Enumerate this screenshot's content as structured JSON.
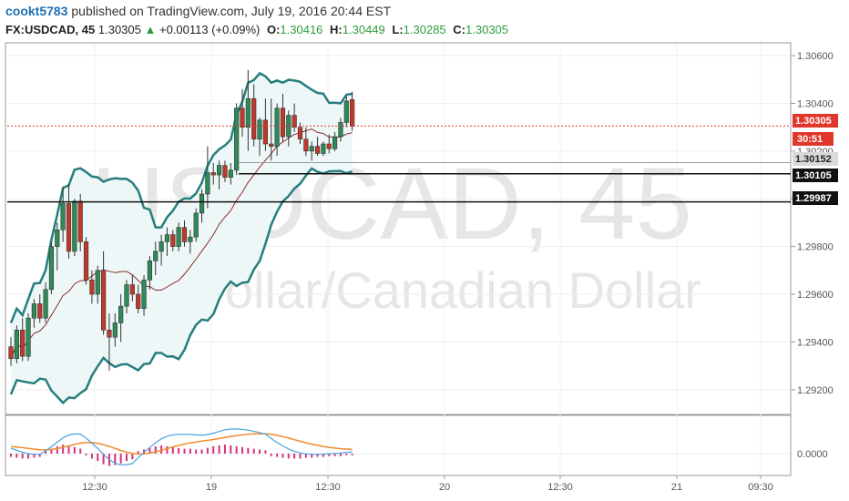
{
  "header": {
    "author": "cookt5783",
    "published_text": "published on TradingView.com, July 19, 2016 20:44 EST",
    "symbol": "FX:USDCAD, 45",
    "last": "1.30305",
    "arrow": "▲",
    "change": "+0.00113 (+0.09%)",
    "o_label": "O:",
    "o_value": "1.30416",
    "h_label": "H:",
    "h_value": "1.30449",
    "l_label": "L:",
    "l_value": "1.30285",
    "c_label": "C:",
    "c_value": "1.30305"
  },
  "watermark": {
    "symbol": "USDCAD, 45",
    "name": "U.S. Dollar/Canadian Dollar"
  },
  "price_tags": {
    "last": "1.30305",
    "countdown": "30:51",
    "level1": "1.30152",
    "level2": "1.30105",
    "level3": "1.29987"
  },
  "colors": {
    "up": "#2e8b57",
    "down": "#c0392b",
    "band": "#267e7e",
    "band_fill": "#eef7f7",
    "basis": "#8b2a2a",
    "macd": "#4aa3df",
    "signal": "#f08c2c",
    "hist_pos": "#d6307a",
    "hist_neg": "#d6307a",
    "last_line": "#e0362b"
  },
  "chart_data": {
    "type": "candlestick",
    "y_ticks": [
      "1.30600",
      "1.30400",
      "1.30200",
      "1.30000",
      "1.29800",
      "1.29600",
      "1.29400",
      "1.29200"
    ],
    "ylim": [
      1.291,
      1.3065
    ],
    "x_ticks": [
      "12:30",
      "19",
      "12:30",
      "20",
      "12:30",
      "21",
      "09:30"
    ],
    "horizontal_levels": [
      1.30105,
      1.29987
    ],
    "last_price": 1.30305,
    "candles": [
      [
        1.2938,
        1.2942,
        1.293,
        1.2933
      ],
      [
        1.2933,
        1.2947,
        1.2931,
        1.2945
      ],
      [
        1.2945,
        1.295,
        1.2932,
        1.2934
      ],
      [
        1.2934,
        1.2952,
        1.2932,
        1.295
      ],
      [
        1.295,
        1.2958,
        1.2946,
        1.2956
      ],
      [
        1.2956,
        1.296,
        1.2948,
        1.295
      ],
      [
        1.295,
        1.2965,
        1.2948,
        1.2962
      ],
      [
        1.2962,
        1.2982,
        1.296,
        1.298
      ],
      [
        1.298,
        1.299,
        1.297,
        1.2987
      ],
      [
        1.2987,
        1.3005,
        1.2982,
        1.2998
      ],
      [
        1.2998,
        1.3006,
        1.2975,
        1.2978
      ],
      [
        1.2978,
        1.3,
        1.2976,
        1.2999
      ],
      [
        1.2999,
        1.3002,
        1.2978,
        1.2982
      ],
      [
        1.2982,
        1.2984,
        1.2964,
        1.2966
      ],
      [
        1.2966,
        1.297,
        1.2956,
        1.296
      ],
      [
        1.296,
        1.2972,
        1.2956,
        1.297
      ],
      [
        1.297,
        1.2978,
        1.2943,
        1.2945
      ],
      [
        1.2945,
        1.2952,
        1.2928,
        1.2942
      ],
      [
        1.2942,
        1.2952,
        1.2938,
        1.2948
      ],
      [
        1.2948,
        1.296,
        1.294,
        1.2955
      ],
      [
        1.2955,
        1.2966,
        1.2952,
        1.2964
      ],
      [
        1.2964,
        1.2968,
        1.2957,
        1.296
      ],
      [
        1.296,
        1.2964,
        1.2952,
        1.2954
      ],
      [
        1.2954,
        1.2968,
        1.2951,
        1.2966
      ],
      [
        1.2966,
        1.2976,
        1.2962,
        1.2974
      ],
      [
        1.2974,
        1.2982,
        1.2968,
        1.2978
      ],
      [
        1.2978,
        1.2985,
        1.2972,
        1.2982
      ],
      [
        1.2982,
        1.2988,
        1.2976,
        1.2985
      ],
      [
        1.2985,
        1.2987,
        1.2978,
        1.298
      ],
      [
        1.298,
        1.299,
        1.2978,
        1.2988
      ],
      [
        1.2988,
        1.2991,
        1.298,
        1.2982
      ],
      [
        1.2982,
        1.2987,
        1.2977,
        1.2984
      ],
      [
        1.2984,
        1.2996,
        1.2982,
        1.2994
      ],
      [
        1.2994,
        1.3004,
        1.299,
        1.3002
      ],
      [
        1.3002,
        1.3022,
        1.2996,
        1.3011
      ],
      [
        1.3011,
        1.3015,
        1.3006,
        1.301
      ],
      [
        1.301,
        1.3016,
        1.3004,
        1.3014
      ],
      [
        1.3014,
        1.3016,
        1.3007,
        1.3009
      ],
      [
        1.3009,
        1.3015,
        1.3006,
        1.3012
      ],
      [
        1.3012,
        1.304,
        1.301,
        1.3038
      ],
      [
        1.3038,
        1.3046,
        1.3026,
        1.303
      ],
      [
        1.303,
        1.3054,
        1.302,
        1.3042
      ],
      [
        1.3042,
        1.3048,
        1.3022,
        1.3025
      ],
      [
        1.3025,
        1.3034,
        1.3018,
        1.3033
      ],
      [
        1.3033,
        1.3042,
        1.302,
        1.3023
      ],
      [
        1.3023,
        1.3042,
        1.3016,
        1.3022
      ],
      [
        1.3022,
        1.304,
        1.3018,
        1.3038
      ],
      [
        1.3038,
        1.3044,
        1.3024,
        1.3026
      ],
      [
        1.3026,
        1.3037,
        1.3022,
        1.3035
      ],
      [
        1.3035,
        1.304,
        1.3028,
        1.303
      ],
      [
        1.303,
        1.3032,
        1.3023,
        1.3025
      ],
      [
        1.3025,
        1.303,
        1.3018,
        1.302
      ],
      [
        1.302,
        1.3024,
        1.3016,
        1.3022
      ],
      [
        1.3022,
        1.3026,
        1.3018,
        1.3019
      ],
      [
        1.3019,
        1.3024,
        1.3018,
        1.3023
      ],
      [
        1.3023,
        1.3027,
        1.3019,
        1.3021
      ],
      [
        1.3021,
        1.3028,
        1.302,
        1.3026
      ],
      [
        1.3026,
        1.3034,
        1.3024,
        1.3032
      ],
      [
        1.3032,
        1.3043,
        1.303,
        1.3041
      ],
      [
        1.30416,
        1.30449,
        1.30285,
        1.30305
      ]
    ],
    "macd_histogram": [
      -0.4,
      -0.5,
      -0.6,
      -0.6,
      -0.5,
      -0.4,
      0.3,
      0.6,
      0.9,
      1.1,
      1.0,
      0.8,
      0.6,
      -0.2,
      -0.6,
      -0.9,
      -1.3,
      -1.5,
      -1.4,
      -1.2,
      -0.9,
      -0.7,
      0.3,
      0.5,
      0.7,
      0.9,
      1.0,
      0.9,
      0.8,
      0.7,
      0.6,
      0.6,
      0.5,
      0.5,
      0.7,
      0.9,
      1.0,
      1.1,
      1.0,
      0.9,
      0.8,
      0.7,
      0.6,
      0.5,
      0.4,
      -0.3,
      -0.4,
      -0.5,
      -0.6,
      -0.6,
      -0.6,
      -0.5,
      -0.5,
      -0.4,
      -0.4,
      -0.3,
      -0.3,
      -0.3,
      -0.2,
      -0.2
    ],
    "macd_ylabel": "0.0000"
  }
}
